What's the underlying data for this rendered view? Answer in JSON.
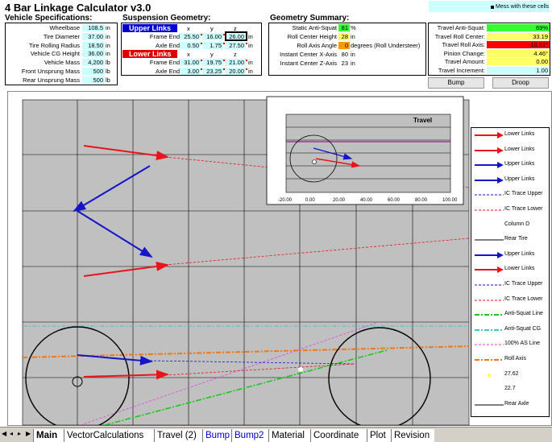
{
  "title": "4 Bar Linkage Calculator v3.0",
  "note": "Mess with these cells",
  "vehicle": {
    "header": "Vehicle Specifications:",
    "rows": [
      {
        "label": "Wheelbase",
        "value": "108.5",
        "unit": "in"
      },
      {
        "label": "Tire Diameter",
        "value": "37.00",
        "unit": "in"
      },
      {
        "label": "Tire Rolling Radius",
        "value": "18.50",
        "unit": "in"
      },
      {
        "label": "Vehicle CG Height",
        "value": "36.00",
        "unit": "in"
      },
      {
        "label": "Vehicle Mass",
        "value": "4,200",
        "unit": "lb"
      },
      {
        "label": "Front Unsprung Mass",
        "value": "500",
        "unit": "lb"
      },
      {
        "label": "Rear Unsprung Mass",
        "value": "500",
        "unit": "lb"
      }
    ]
  },
  "suspension": {
    "header": "Suspension Geometry:",
    "upper_label": "Upper Links",
    "lower_label": "Lower Links",
    "cols": [
      "x",
      "y",
      "z"
    ],
    "upper": [
      {
        "label": "Frame End",
        "x": "25.50",
        "y": "16.00",
        "z": "26.00",
        "unit": "in"
      },
      {
        "label": "Axle End",
        "x": "0.50",
        "y": "1.75",
        "z": "27.50",
        "unit": "in"
      }
    ],
    "lower": [
      {
        "label": "Frame End",
        "x": "31.00",
        "y": "19.75",
        "z": "21.00",
        "unit": "in"
      },
      {
        "label": "Axle End",
        "x": "3.00",
        "y": "23.25",
        "z": "20.00",
        "unit": "in"
      }
    ]
  },
  "summary": {
    "header": "Geometry Summary:",
    "rows": [
      {
        "label": "Static Anti-Squat",
        "value": "81",
        "unit": "%"
      },
      {
        "label": "Roll Center Height",
        "value": "28",
        "unit": "in"
      },
      {
        "label": "Roll Axis Angle",
        "value": "0",
        "unit": "degrees (Roll Understeer)"
      },
      {
        "label": "Instant Center X-Axis",
        "value": "80",
        "unit": "in"
      },
      {
        "label": "Instant Center Z-Axis",
        "value": "23",
        "unit": "in"
      }
    ]
  },
  "travel": {
    "rows": [
      {
        "label": "Travel Anti-Squat:",
        "value": "69%"
      },
      {
        "label": "Travel Roll Center:",
        "value": "33.19"
      },
      {
        "label": "Travel Roll Axis:",
        "value": "-10.51°"
      },
      {
        "label": "Pinion Change:",
        "value": "4.46°"
      },
      {
        "label": "Travel Amount:",
        "value": "0.00"
      },
      {
        "label": "Travel Increment:",
        "value": "1.00"
      }
    ],
    "bump_label": "Bump",
    "droop_label": "Droop"
  },
  "inset": {
    "title": "Travel",
    "ticks": [
      "-20.00",
      "0.00",
      "20.00",
      "40.00",
      "60.00",
      "80.00",
      "100.00"
    ]
  },
  "legend": [
    {
      "label": "Lower Links",
      "color": "#e8141a",
      "style": "arrow"
    },
    {
      "label": "Lower Links",
      "color": "#e8141a",
      "style": "arrow"
    },
    {
      "label": "Upper Links",
      "color": "#1414c8",
      "style": "arrow"
    },
    {
      "label": "Upper Links",
      "color": "#1414c8",
      "style": "arrow"
    },
    {
      "label": "IC Trace Upper",
      "color": "#1414c8",
      "style": "dash"
    },
    {
      "label": "IC Trace Lower",
      "color": "#e8141a",
      "style": "dash"
    },
    {
      "label": "Column D",
      "color": "#000000",
      "style": "none"
    },
    {
      "label": "Rear Tire",
      "color": "#000000",
      "style": "solid"
    },
    {
      "label": "Upper Links",
      "color": "#1414c8",
      "style": "arrow"
    },
    {
      "label": "Lower Links",
      "color": "#e8141a",
      "style": "arrow"
    },
    {
      "label": "IC Trace Upper",
      "color": "#1414c8",
      "style": "dash"
    },
    {
      "label": "IC Trace Lower",
      "color": "#e8141a",
      "style": "dash"
    },
    {
      "label": "Anti-Squat Line",
      "color": "#19c819",
      "style": "dashdot"
    },
    {
      "label": "Anti-Squat CG",
      "color": "#3cc8c8",
      "style": "dashdot"
    },
    {
      "label": "100% AS Line",
      "color": "#e63ce6",
      "style": "dash"
    },
    {
      "label": "Roll Axis",
      "color": "#f07814",
      "style": "dashdot"
    },
    {
      "label": "27.62",
      "color": "#ffff50",
      "style": "dot"
    },
    {
      "label": "22.7",
      "color": "#ffffff",
      "style": "none"
    },
    {
      "label": "Rear Axle",
      "color": "#000000",
      "style": "solid"
    }
  ],
  "tabs": [
    "Main",
    "VectorCalculations",
    "Travel (2)",
    "Bump",
    "Bump2",
    "Material",
    "Coordinate",
    "Plot",
    "Revision"
  ],
  "active_tab": "Main"
}
